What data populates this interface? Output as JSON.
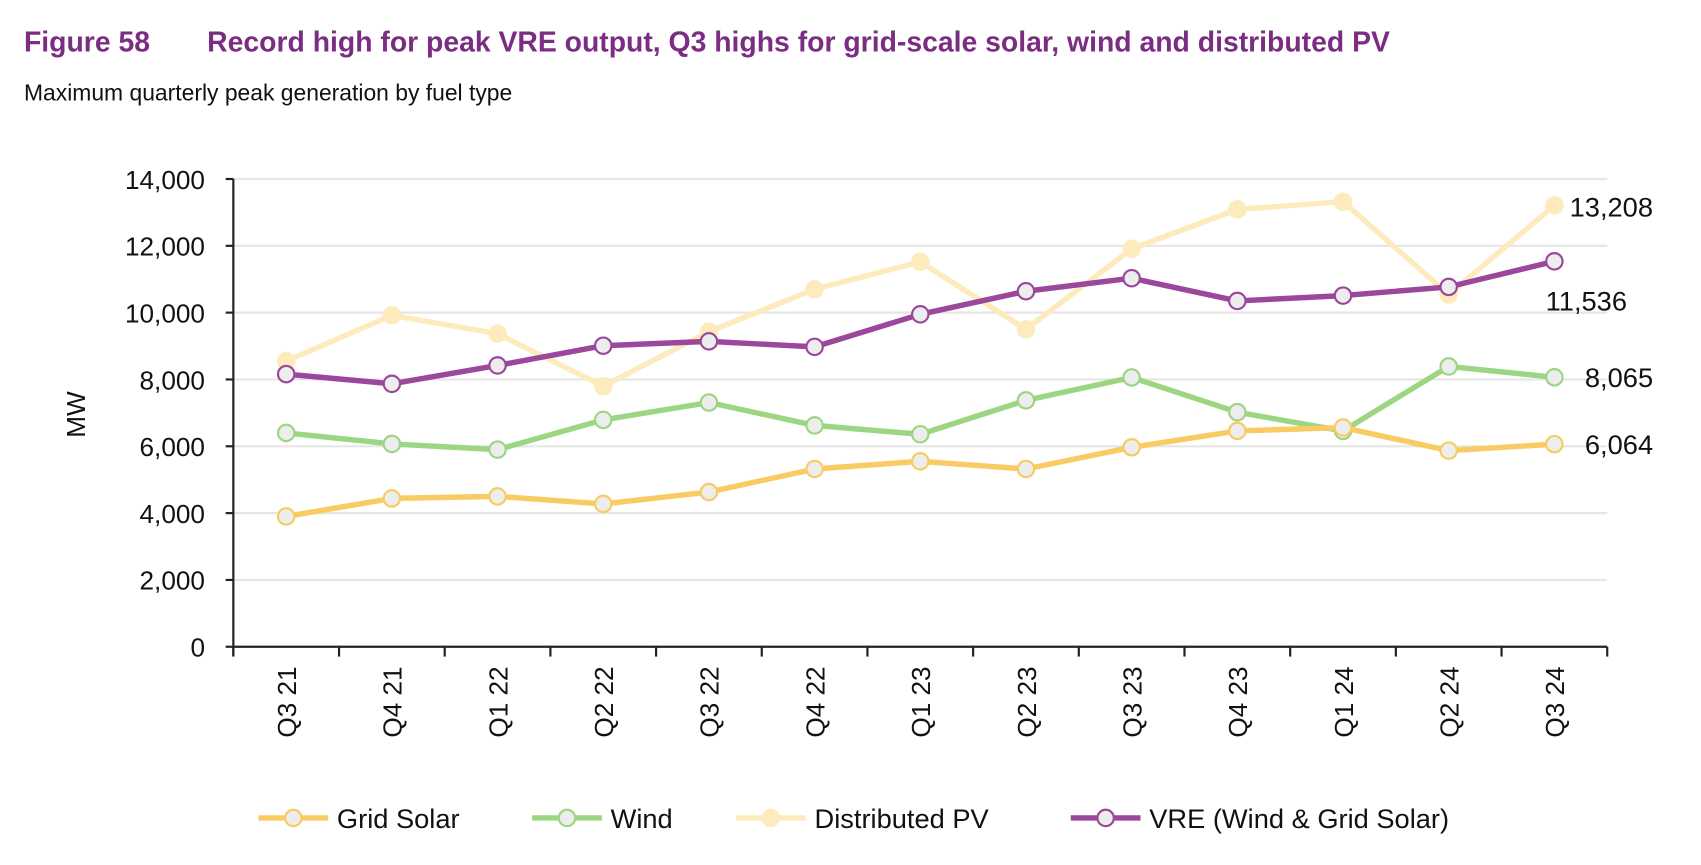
{
  "figure_label": "Figure 58",
  "title": "Record high for peak VRE output, Q3 highs for grid-scale solar, wind and distributed PV",
  "subtitle": "Maximum quarterly peak generation by fuel type",
  "chart_data": {
    "type": "line",
    "ylabel": "MW",
    "xlabel": "",
    "ylim": [
      0,
      14000
    ],
    "yticks": [
      "0",
      "2,000",
      "4,000",
      "6,000",
      "8,000",
      "10,000",
      "12,000",
      "14,000"
    ],
    "grid": true,
    "legend_position": "bottom",
    "categories": [
      "Q3 21",
      "Q4 21",
      "Q1 22",
      "Q2 22",
      "Q3 22",
      "Q4 22",
      "Q1 23",
      "Q2 23",
      "Q3 23",
      "Q4 23",
      "Q1 24",
      "Q2 24",
      "Q3 24"
    ],
    "series": [
      {
        "name": "Grid Solar",
        "color": "#F8CB63",
        "marker_fill": "#EDEDED",
        "values": [
          3900,
          4440,
          4500,
          4275,
          4630,
          5320,
          5550,
          5320,
          5970,
          6460,
          6560,
          5870,
          6064
        ],
        "end_label": "6,064"
      },
      {
        "name": "Wind",
        "color": "#9DD683",
        "marker_fill": "#EDEDED",
        "values": [
          6400,
          6070,
          5900,
          6790,
          7310,
          6625,
          6360,
          7375,
          8060,
          7020,
          6460,
          8390,
          8065
        ],
        "end_label": "8,065"
      },
      {
        "name": "Distributed PV",
        "color": "#FDEBBE",
        "marker_fill": "#FDEBBE",
        "values": [
          8550,
          9920,
          9370,
          7800,
          9430,
          10700,
          11520,
          9500,
          11910,
          13090,
          13320,
          10540,
          13208
        ],
        "end_label": "13,208"
      },
      {
        "name": "VRE (Wind & Grid Solar)",
        "color": "#9B479C",
        "marker_fill": "#EDEDED",
        "values": [
          8160,
          7870,
          8420,
          9010,
          9140,
          8975,
          9950,
          10640,
          11030,
          10350,
          10510,
          10770,
          11536
        ],
        "end_label": "11,536"
      }
    ]
  }
}
